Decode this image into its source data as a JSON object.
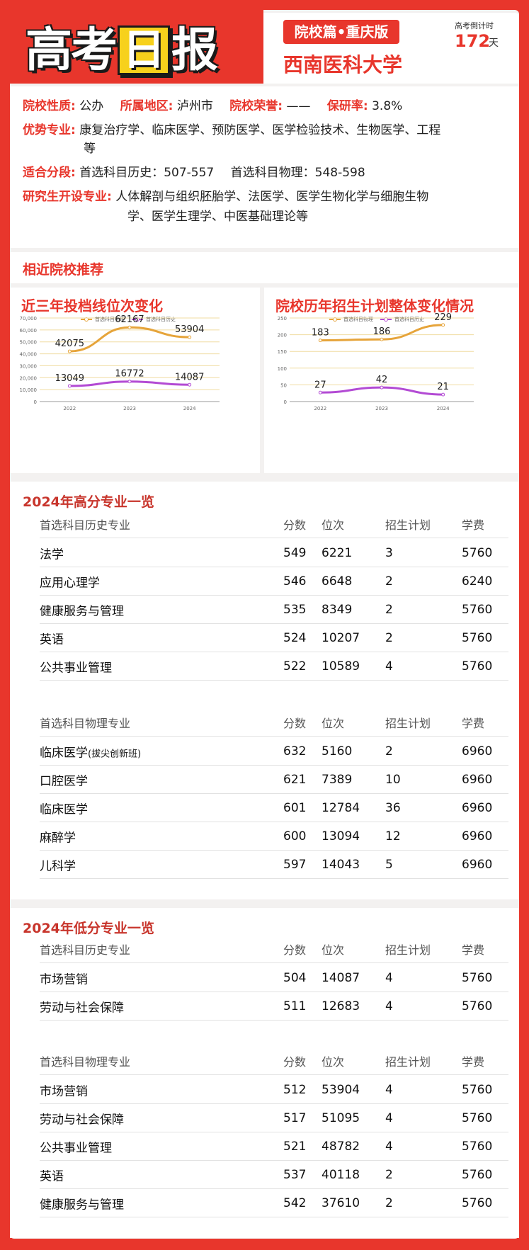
{
  "header": {
    "logo_chars": [
      "高",
      "考",
      "日",
      "报"
    ],
    "badge": "院校篇•重庆版",
    "university": "西南医科大学",
    "countdown_label": "高考倒计时",
    "countdown_days": "172",
    "countdown_unit": "天"
  },
  "info": {
    "nature_label": "院校性质:",
    "nature": "公办",
    "region_label": "所属地区:",
    "region": "泸州市",
    "honor_label": "院校荣誉:",
    "honor": "——",
    "postgrad_label": "保研率:",
    "postgrad": "3.8%",
    "majors_label": "优势专业:",
    "majors_line1": "康复治疗学、临床医学、预防医学、医学检验技术、生物医学、工程",
    "majors_line2": "等",
    "score_label": "适合分段:",
    "score_history": "首选科目历史：507-557",
    "score_physics": "首选科目物理：548-598",
    "grad_label": "研究生开设专业:",
    "grad_line1": "人体解剖与组织胚胎学、法医学、医学生物化学与细胞生物",
    "grad_line2": "学、医学生理学、中医基础理论等"
  },
  "similar_title": "相近院校推荐",
  "chart_data": [
    {
      "type": "line",
      "title": "近三年投档线位次变化",
      "x": [
        "2022",
        "2023",
        "2024"
      ],
      "series": [
        {
          "name": "首选科目物理",
          "values": [
            42075,
            62167,
            53904
          ],
          "color": "#e6a43a"
        },
        {
          "name": "首选科目历史",
          "values": [
            13049,
            16772,
            14087
          ],
          "color": "#b34bd4"
        }
      ],
      "ylim": [
        0,
        70000
      ],
      "yticks": [
        "0",
        "10,000",
        "20,000",
        "30,000",
        "40,000",
        "50,000",
        "60,000",
        "70,000"
      ],
      "legend": "top-center",
      "grid": true
    },
    {
      "type": "line",
      "title": "院校历年招生计划整体变化情况",
      "x": [
        "2022",
        "2023",
        "2024"
      ],
      "series": [
        {
          "name": "首选科目物理",
          "values": [
            183,
            186,
            229
          ],
          "color": "#e6a43a"
        },
        {
          "name": "首选科目历史",
          "values": [
            27,
            42,
            21
          ],
          "color": "#b34bd4"
        }
      ],
      "ylim": [
        0,
        250
      ],
      "yticks": [
        "0",
        "50",
        "100",
        "150",
        "200",
        "250"
      ],
      "legend": "top-center",
      "grid": true
    }
  ],
  "high": {
    "title": "2024年高分专业一览",
    "history": {
      "headers": [
        "首选科目历史专业",
        "分数",
        "位次",
        "招生计划",
        "学费"
      ],
      "rows": [
        [
          "法学",
          "549",
          "6221",
          "3",
          "5760"
        ],
        [
          "应用心理学",
          "546",
          "6648",
          "2",
          "6240"
        ],
        [
          "健康服务与管理",
          "535",
          "8349",
          "2",
          "5760"
        ],
        [
          "英语",
          "524",
          "10207",
          "2",
          "5760"
        ],
        [
          "公共事业管理",
          "522",
          "10589",
          "4",
          "5760"
        ]
      ]
    },
    "physics": {
      "headers": [
        "首选科目物理专业",
        "分数",
        "位次",
        "招生计划",
        "学费"
      ],
      "rows": [
        [
          "临床医学",
          "632",
          "5160",
          "2",
          "6960"
        ],
        [
          "口腔医学",
          "621",
          "7389",
          "10",
          "6960"
        ],
        [
          "临床医学",
          "601",
          "12784",
          "36",
          "6960"
        ],
        [
          "麻醉学",
          "600",
          "13094",
          "12",
          "6960"
        ],
        [
          "儿科学",
          "597",
          "14043",
          "5",
          "6960"
        ]
      ],
      "note_row0": "(拔尖创新班)"
    }
  },
  "low": {
    "title": "2024年低分专业一览",
    "history": {
      "headers": [
        "首选科目历史专业",
        "分数",
        "位次",
        "招生计划",
        "学费"
      ],
      "rows": [
        [
          "市场营销",
          "504",
          "14087",
          "4",
          "5760"
        ],
        [
          "劳动与社会保障",
          "511",
          "12683",
          "4",
          "5760"
        ]
      ]
    },
    "physics": {
      "headers": [
        "首选科目物理专业",
        "分数",
        "位次",
        "招生计划",
        "学费"
      ],
      "rows": [
        [
          "市场营销",
          "512",
          "53904",
          "4",
          "5760"
        ],
        [
          "劳动与社会保障",
          "517",
          "51095",
          "4",
          "5760"
        ],
        [
          "公共事业管理",
          "521",
          "48782",
          "4",
          "5760"
        ],
        [
          "英语",
          "537",
          "40118",
          "2",
          "5760"
        ],
        [
          "健康服务与管理",
          "542",
          "37610",
          "2",
          "5760"
        ]
      ]
    }
  }
}
